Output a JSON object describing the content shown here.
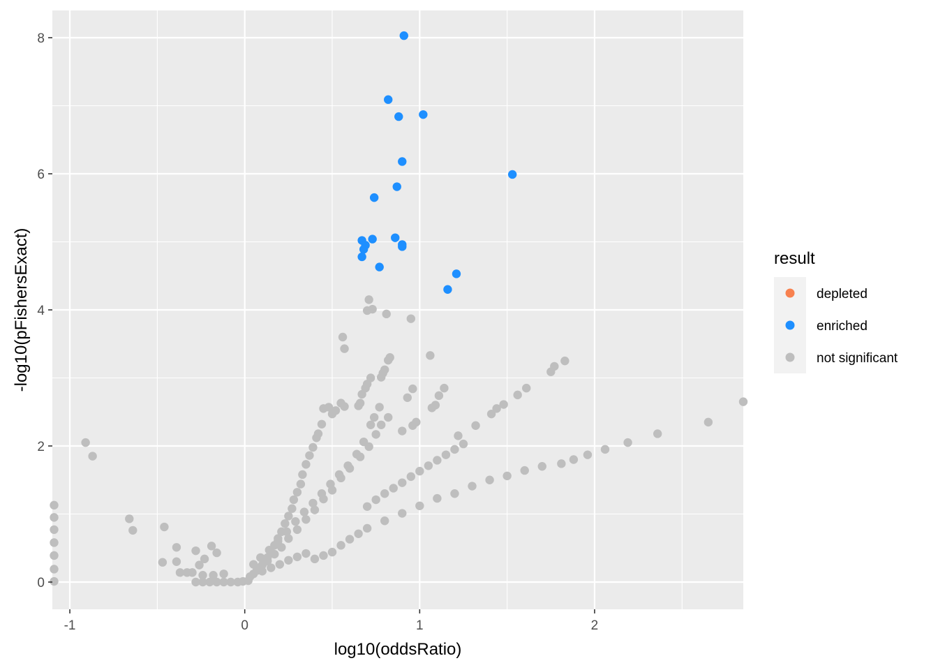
{
  "chart_data": {
    "type": "scatter",
    "title": "",
    "xlabel": "log10(oddsRatio)",
    "ylabel": "-log10(pFishersExact)",
    "xlim": [
      -1.1,
      2.85
    ],
    "ylim": [
      -0.4,
      8.4
    ],
    "x_ticks": [
      -1,
      0,
      1,
      2
    ],
    "x_tick_labels": [
      "-1",
      "0",
      "1",
      "2"
    ],
    "y_ticks": [
      0,
      2,
      4,
      6,
      8
    ],
    "y_tick_labels": [
      "0",
      "2",
      "4",
      "6",
      "8"
    ],
    "grid": true,
    "legend_position": "right",
    "legend": {
      "title": "result",
      "entries": [
        {
          "label": "depleted",
          "color": "#F8814F"
        },
        {
          "label": "enriched",
          "color": "#1E8FFF"
        },
        {
          "label": "not significant",
          "color": "#BEBEBE"
        }
      ]
    },
    "series": [
      {
        "name": "enriched",
        "color": "#1E8FFF",
        "points": [
          [
            0.91,
            8.03
          ],
          [
            0.82,
            7.09
          ],
          [
            0.88,
            6.84
          ],
          [
            1.02,
            6.87
          ],
          [
            0.9,
            6.18
          ],
          [
            1.53,
            5.99
          ],
          [
            0.87,
            5.81
          ],
          [
            0.74,
            5.65
          ],
          [
            0.67,
            5.02
          ],
          [
            0.73,
            5.04
          ],
          [
            0.86,
            5.06
          ],
          [
            0.69,
            4.95
          ],
          [
            0.68,
            4.89
          ],
          [
            0.9,
            4.93
          ],
          [
            0.9,
            4.96
          ],
          [
            0.67,
            4.78
          ],
          [
            0.77,
            4.63
          ],
          [
            1.21,
            4.53
          ],
          [
            1.16,
            4.3
          ]
        ]
      },
      {
        "name": "not significant",
        "color": "#BEBEBE",
        "points": [
          [
            -0.91,
            2.05
          ],
          [
            -0.87,
            1.85
          ],
          [
            -1.09,
            1.13
          ],
          [
            -1.09,
            0.95
          ],
          [
            -1.09,
            0.77
          ],
          [
            -1.09,
            0.58
          ],
          [
            -1.09,
            0.39
          ],
          [
            -1.09,
            0.19
          ],
          [
            -1.09,
            0.01
          ],
          [
            -0.66,
            0.93
          ],
          [
            -0.64,
            0.76
          ],
          [
            -0.46,
            0.81
          ],
          [
            -0.47,
            0.29
          ],
          [
            -0.39,
            0.51
          ],
          [
            -0.39,
            0.3
          ],
          [
            -0.37,
            0.14
          ],
          [
            -0.33,
            0.14
          ],
          [
            -0.3,
            0.14
          ],
          [
            -0.28,
            0.46
          ],
          [
            -0.26,
            0.25
          ],
          [
            -0.23,
            0.34
          ],
          [
            -0.19,
            0.53
          ],
          [
            -0.16,
            0.43
          ],
          [
            -0.24,
            0.1
          ],
          [
            -0.18,
            0.1
          ],
          [
            -0.12,
            0.12
          ],
          [
            -0.28,
            0.0
          ],
          [
            -0.24,
            0.0
          ],
          [
            -0.2,
            0.0
          ],
          [
            -0.16,
            0.0
          ],
          [
            -0.12,
            0.0
          ],
          [
            -0.08,
            0.0
          ],
          [
            -0.04,
            0.0
          ],
          [
            -0.01,
            0.01
          ],
          [
            0.02,
            0.02
          ],
          [
            2.85,
            2.65
          ],
          [
            2.65,
            2.35
          ],
          [
            2.36,
            2.18
          ],
          [
            2.19,
            2.05
          ],
          [
            2.06,
            1.95
          ],
          [
            1.96,
            1.87
          ],
          [
            1.88,
            1.8
          ],
          [
            1.81,
            1.74
          ],
          [
            1.83,
            3.25
          ],
          [
            1.77,
            3.17
          ],
          [
            1.75,
            3.09
          ],
          [
            1.61,
            2.85
          ],
          [
            1.56,
            2.75
          ],
          [
            1.48,
            2.61
          ],
          [
            1.44,
            2.55
          ],
          [
            1.41,
            2.47
          ],
          [
            1.32,
            2.3
          ],
          [
            1.22,
            2.15
          ],
          [
            1.14,
            2.85
          ],
          [
            1.11,
            2.74
          ],
          [
            1.09,
            2.6
          ],
          [
            1.07,
            2.56
          ],
          [
            0.98,
            2.35
          ],
          [
            0.96,
            2.3
          ],
          [
            0.9,
            2.22
          ],
          [
            0.96,
            2.84
          ],
          [
            0.93,
            2.71
          ],
          [
            0.82,
            2.42
          ],
          [
            0.78,
            2.31
          ],
          [
            0.75,
            2.17
          ],
          [
            0.71,
            1.99
          ],
          [
            0.66,
            1.84
          ],
          [
            0.6,
            1.67
          ],
          [
            0.55,
            1.53
          ],
          [
            0.5,
            1.35
          ],
          [
            0.45,
            1.22
          ],
          [
            0.4,
            1.06
          ],
          [
            0.35,
            0.92
          ],
          [
            0.3,
            0.77
          ],
          [
            0.25,
            0.64
          ],
          [
            0.21,
            0.51
          ],
          [
            0.17,
            0.41
          ],
          [
            0.13,
            0.31
          ],
          [
            0.1,
            0.25
          ],
          [
            0.07,
            0.18
          ],
          [
            1.06,
            3.33
          ],
          [
            0.95,
            3.87
          ],
          [
            0.81,
            3.94
          ],
          [
            0.71,
            4.15
          ],
          [
            0.73,
            4.01
          ],
          [
            0.7,
            3.99
          ],
          [
            0.56,
            3.6
          ],
          [
            0.57,
            3.43
          ],
          [
            0.83,
            3.3
          ],
          [
            0.82,
            3.26
          ],
          [
            0.8,
            3.12
          ],
          [
            0.79,
            3.07
          ],
          [
            0.78,
            3.01
          ],
          [
            0.72,
            3.0
          ],
          [
            0.7,
            2.91
          ],
          [
            0.69,
            2.85
          ],
          [
            0.67,
            2.76
          ],
          [
            0.66,
            2.63
          ],
          [
            0.65,
            2.59
          ],
          [
            0.57,
            2.58
          ],
          [
            0.55,
            2.63
          ],
          [
            0.52,
            2.52
          ],
          [
            0.5,
            2.47
          ],
          [
            0.48,
            2.57
          ],
          [
            0.45,
            2.55
          ],
          [
            0.44,
            2.32
          ],
          [
            0.42,
            2.18
          ],
          [
            0.41,
            2.12
          ],
          [
            0.39,
            1.98
          ],
          [
            0.37,
            1.86
          ],
          [
            0.35,
            1.73
          ],
          [
            0.33,
            1.58
          ],
          [
            0.32,
            1.44
          ],
          [
            0.3,
            1.32
          ],
          [
            0.28,
            1.21
          ],
          [
            0.27,
            1.08
          ],
          [
            0.25,
            0.97
          ],
          [
            0.23,
            0.86
          ],
          [
            0.21,
            0.74
          ],
          [
            0.19,
            0.64
          ],
          [
            0.17,
            0.54
          ],
          [
            0.15,
            0.44
          ],
          [
            0.13,
            0.36
          ],
          [
            0.11,
            0.29
          ],
          [
            0.09,
            0.22
          ],
          [
            0.07,
            0.17
          ],
          [
            0.05,
            0.12
          ],
          [
            0.03,
            0.08
          ],
          [
            0.77,
            2.57
          ],
          [
            0.74,
            2.42
          ],
          [
            0.72,
            2.31
          ],
          [
            0.68,
            2.06
          ],
          [
            0.64,
            1.88
          ],
          [
            0.59,
            1.71
          ],
          [
            0.54,
            1.58
          ],
          [
            0.49,
            1.44
          ],
          [
            0.44,
            1.3
          ],
          [
            0.39,
            1.16
          ],
          [
            0.34,
            1.03
          ],
          [
            0.29,
            0.89
          ],
          [
            0.24,
            0.74
          ],
          [
            0.19,
            0.6
          ],
          [
            0.14,
            0.47
          ],
          [
            0.09,
            0.36
          ],
          [
            0.05,
            0.26
          ],
          [
            0.5,
            0.44
          ],
          [
            0.55,
            0.54
          ],
          [
            0.6,
            0.63
          ],
          [
            0.65,
            0.71
          ],
          [
            0.7,
            0.79
          ],
          [
            0.8,
            0.9
          ],
          [
            0.9,
            1.01
          ],
          [
            1.0,
            1.12
          ],
          [
            1.1,
            1.23
          ],
          [
            1.2,
            1.3
          ],
          [
            1.3,
            1.41
          ],
          [
            1.4,
            1.5
          ],
          [
            1.5,
            1.56
          ],
          [
            1.6,
            1.64
          ],
          [
            1.7,
            1.7
          ],
          [
            0.7,
            1.11
          ],
          [
            0.75,
            1.21
          ],
          [
            0.8,
            1.3
          ],
          [
            0.85,
            1.38
          ],
          [
            0.9,
            1.46
          ],
          [
            0.95,
            1.55
          ],
          [
            1.0,
            1.63
          ],
          [
            1.05,
            1.71
          ],
          [
            1.1,
            1.79
          ],
          [
            1.15,
            1.87
          ],
          [
            1.2,
            1.95
          ],
          [
            1.25,
            2.03
          ],
          [
            0.4,
            0.34
          ],
          [
            0.45,
            0.39
          ],
          [
            0.35,
            0.42
          ],
          [
            0.3,
            0.37
          ],
          [
            0.25,
            0.32
          ],
          [
            0.2,
            0.26
          ],
          [
            0.15,
            0.21
          ],
          [
            0.1,
            0.16
          ]
        ]
      }
    ]
  }
}
